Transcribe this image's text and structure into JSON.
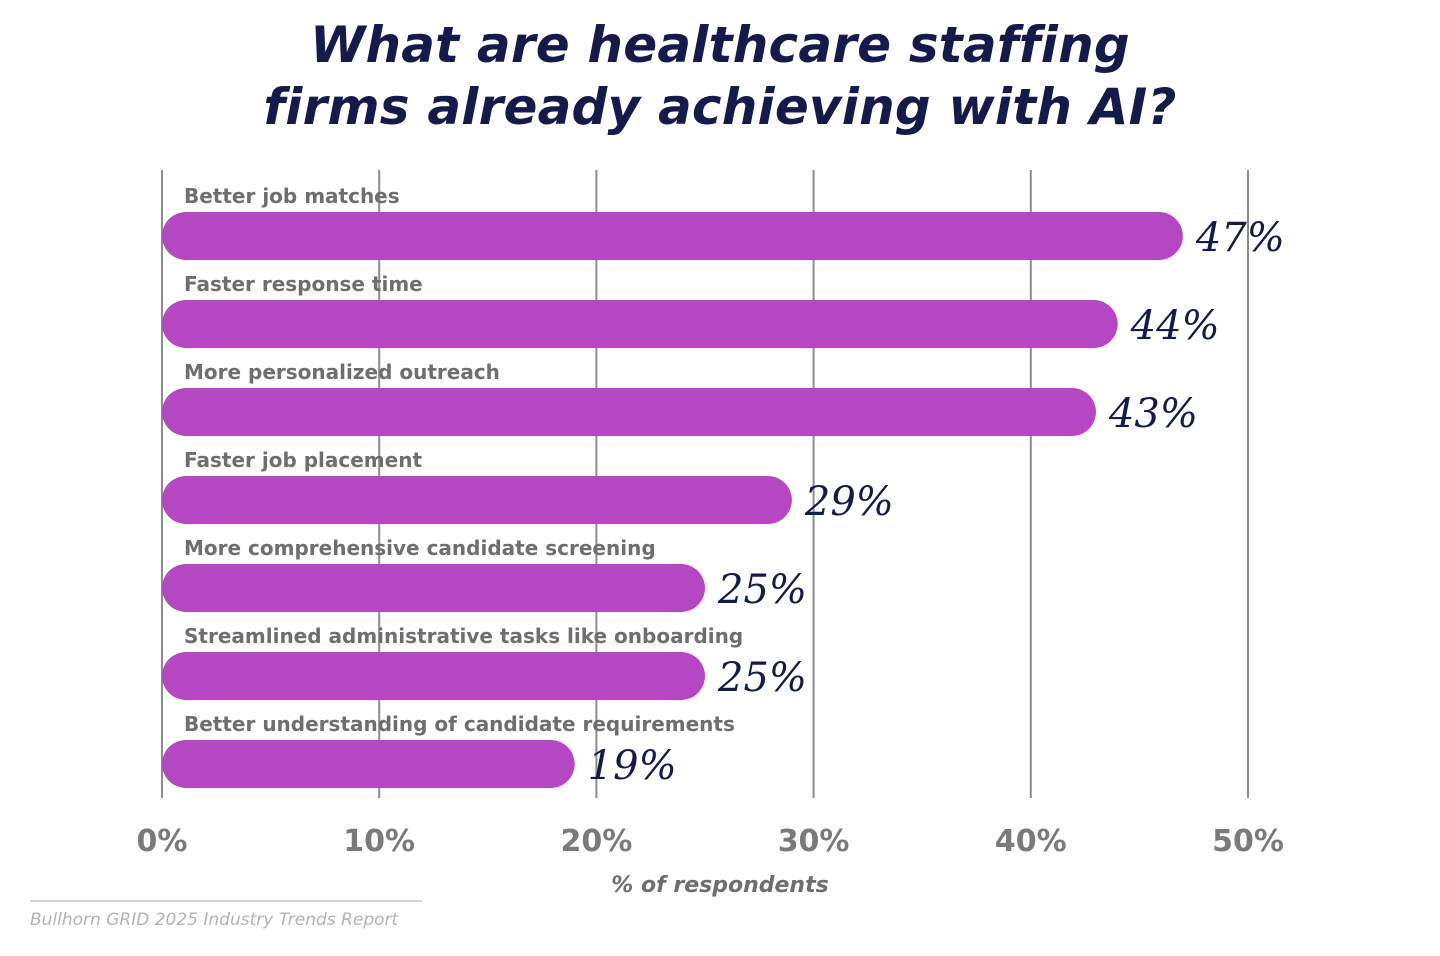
{
  "chart_data": {
    "type": "bar",
    "orientation": "horizontal",
    "title": "What are healthcare staffing firms already achieving with AI?",
    "categories": [
      "Better job matches",
      "Faster response time",
      "More personalized outreach",
      "Faster job placement",
      "More comprehensive candidate screening",
      "Streamlined administrative tasks like onboarding",
      "Better understanding of candidate requirements"
    ],
    "values": [
      47,
      44,
      43,
      29,
      25,
      25,
      19
    ],
    "value_labels": [
      "47%",
      "44%",
      "43%",
      "29%",
      "25%",
      "25%",
      "19%"
    ],
    "xlabel": "% of respondents",
    "xlim": [
      0,
      50
    ],
    "xticks": [
      0,
      10,
      20,
      30,
      40,
      50
    ],
    "xtick_labels": [
      "0%",
      "10%",
      "20%",
      "30%",
      "40%",
      "50%"
    ],
    "grid": "vertical",
    "bar_color": "#b647c2",
    "gridline_color": "#8c8c8c"
  },
  "title_lines": [
    "What are healthcare staffing",
    "firms already achieving with AI?"
  ],
  "source": "Bullhorn GRID 2025 Industry Trends Report"
}
